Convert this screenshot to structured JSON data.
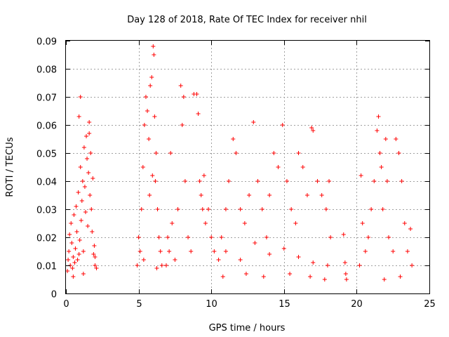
{
  "chart_data": {
    "type": "scatter",
    "title": "Day 128 of 2018, Rate Of TEC Index for receiver nhil",
    "xlabel": "GPS time / hours",
    "ylabel": "ROTI / TECUs",
    "xlim": [
      0,
      25
    ],
    "ylim": [
      0,
      0.09
    ],
    "xticks": [
      0,
      5,
      10,
      15,
      20,
      25
    ],
    "yticks": [
      0,
      0.01,
      0.02,
      0.03,
      0.04,
      0.05,
      0.06,
      0.07,
      0.08,
      0.09
    ],
    "xtick_labels": [
      "0",
      "5",
      "10",
      "15",
      "20",
      "25"
    ],
    "ytick_labels": [
      "0",
      "0.01",
      "0.02",
      "0.03",
      "0.04",
      "0.05",
      "0.06",
      "0.07",
      "0.08",
      "0.09"
    ],
    "grid": true,
    "marker": "+",
    "color": "#ff0000",
    "series": [
      {
        "name": "ROTI",
        "points": [
          [
            0.1,
            0.008
          ],
          [
            0.15,
            0.012
          ],
          [
            0.2,
            0.015
          ],
          [
            0.25,
            0.021
          ],
          [
            0.3,
            0.01
          ],
          [
            0.35,
            0.025
          ],
          [
            0.4,
            0.018
          ],
          [
            0.45,
            0.009
          ],
          [
            0.5,
            0.013
          ],
          [
            0.55,
            0.028
          ],
          [
            0.6,
            0.011
          ],
          [
            0.65,
            0.016
          ],
          [
            0.7,
            0.031
          ],
          [
            0.75,
            0.022
          ],
          [
            0.8,
            0.012
          ],
          [
            0.85,
            0.036
          ],
          [
            0.9,
            0.014
          ],
          [
            0.95,
            0.019
          ],
          [
            1.0,
            0.045
          ],
          [
            1.05,
            0.026
          ],
          [
            1.1,
            0.033
          ],
          [
            1.15,
            0.04
          ],
          [
            1.2,
            0.015
          ],
          [
            1.25,
            0.052
          ],
          [
            1.3,
            0.038
          ],
          [
            1.35,
            0.029
          ],
          [
            1.4,
            0.056
          ],
          [
            1.45,
            0.048
          ],
          [
            1.5,
            0.024
          ],
          [
            1.55,
            0.043
          ],
          [
            1.6,
            0.057
          ],
          [
            1.65,
            0.035
          ],
          [
            1.7,
            0.05
          ],
          [
            1.75,
            0.03
          ],
          [
            1.8,
            0.022
          ],
          [
            1.85,
            0.041
          ],
          [
            1.9,
            0.014
          ],
          [
            1.95,
            0.017
          ],
          [
            2.0,
            0.01
          ],
          [
            2.1,
            0.009
          ],
          [
            1.0,
            0.07
          ],
          [
            0.9,
            0.063
          ],
          [
            1.6,
            0.061
          ],
          [
            2.0,
            0.013
          ],
          [
            0.5,
            0.006
          ],
          [
            1.2,
            0.007
          ],
          [
            4.9,
            0.01
          ],
          [
            5.0,
            0.02
          ],
          [
            5.1,
            0.015
          ],
          [
            5.2,
            0.03
          ],
          [
            5.3,
            0.045
          ],
          [
            5.4,
            0.06
          ],
          [
            5.5,
            0.07
          ],
          [
            5.6,
            0.065
          ],
          [
            5.7,
            0.055
          ],
          [
            5.8,
            0.074
          ],
          [
            5.9,
            0.077
          ],
          [
            6.0,
            0.088
          ],
          [
            6.05,
            0.085
          ],
          [
            6.1,
            0.063
          ],
          [
            6.15,
            0.04
          ],
          [
            6.2,
            0.05
          ],
          [
            6.3,
            0.03
          ],
          [
            6.4,
            0.02
          ],
          [
            6.5,
            0.015
          ],
          [
            6.6,
            0.01
          ],
          [
            5.75,
            0.035
          ],
          [
            5.95,
            0.042
          ],
          [
            6.25,
            0.009
          ],
          [
            5.35,
            0.012
          ],
          [
            6.9,
            0.01
          ],
          [
            7.0,
            0.02
          ],
          [
            7.1,
            0.015
          ],
          [
            7.2,
            0.05
          ],
          [
            7.3,
            0.025
          ],
          [
            7.5,
            0.012
          ],
          [
            7.7,
            0.03
          ],
          [
            7.9,
            0.074
          ],
          [
            8.0,
            0.06
          ],
          [
            8.1,
            0.07
          ],
          [
            8.2,
            0.04
          ],
          [
            8.4,
            0.02
          ],
          [
            8.6,
            0.015
          ],
          [
            8.8,
            0.071
          ],
          [
            9.0,
            0.071
          ],
          [
            9.1,
            0.064
          ],
          [
            9.2,
            0.04
          ],
          [
            9.3,
            0.035
          ],
          [
            9.4,
            0.03
          ],
          [
            9.5,
            0.042
          ],
          [
            9.6,
            0.025
          ],
          [
            9.8,
            0.03
          ],
          [
            10.0,
            0.02
          ],
          [
            10.2,
            0.015
          ],
          [
            10.5,
            0.012
          ],
          [
            10.7,
            0.02
          ],
          [
            11.0,
            0.03
          ],
          [
            11.2,
            0.04
          ],
          [
            11.5,
            0.055
          ],
          [
            11.7,
            0.05
          ],
          [
            12.0,
            0.03
          ],
          [
            12.3,
            0.025
          ],
          [
            12.6,
            0.035
          ],
          [
            12.9,
            0.061
          ],
          [
            13.2,
            0.04
          ],
          [
            13.5,
            0.03
          ],
          [
            13.8,
            0.02
          ],
          [
            14.0,
            0.035
          ],
          [
            14.3,
            0.05
          ],
          [
            14.6,
            0.045
          ],
          [
            14.9,
            0.06
          ],
          [
            15.2,
            0.04
          ],
          [
            15.5,
            0.03
          ],
          [
            15.8,
            0.025
          ],
          [
            16.0,
            0.05
          ],
          [
            16.3,
            0.045
          ],
          [
            16.6,
            0.035
          ],
          [
            16.9,
            0.059
          ],
          [
            17.0,
            0.058
          ],
          [
            17.3,
            0.04
          ],
          [
            17.6,
            0.035
          ],
          [
            17.9,
            0.03
          ],
          [
            18.1,
            0.04
          ],
          [
            18.2,
            0.02
          ],
          [
            11.0,
            0.015
          ],
          [
            12.0,
            0.012
          ],
          [
            13.0,
            0.018
          ],
          [
            14.0,
            0.014
          ],
          [
            15.0,
            0.016
          ],
          [
            16.0,
            0.013
          ],
          [
            17.0,
            0.011
          ],
          [
            18.0,
            0.01
          ],
          [
            10.8,
            0.006
          ],
          [
            12.4,
            0.007
          ],
          [
            13.6,
            0.006
          ],
          [
            15.4,
            0.007
          ],
          [
            16.8,
            0.006
          ],
          [
            17.8,
            0.005
          ],
          [
            19.1,
            0.021
          ],
          [
            19.2,
            0.011
          ],
          [
            19.25,
            0.007
          ],
          [
            19.3,
            0.005
          ],
          [
            20.2,
            0.01
          ],
          [
            20.4,
            0.025
          ],
          [
            20.6,
            0.015
          ],
          [
            20.8,
            0.02
          ],
          [
            21.0,
            0.03
          ],
          [
            21.2,
            0.04
          ],
          [
            21.4,
            0.058
          ],
          [
            21.5,
            0.063
          ],
          [
            21.6,
            0.05
          ],
          [
            21.7,
            0.045
          ],
          [
            21.8,
            0.03
          ],
          [
            22.0,
            0.055
          ],
          [
            22.1,
            0.04
          ],
          [
            22.2,
            0.02
          ],
          [
            22.5,
            0.015
          ],
          [
            22.7,
            0.055
          ],
          [
            22.9,
            0.05
          ],
          [
            23.1,
            0.04
          ],
          [
            23.3,
            0.025
          ],
          [
            23.5,
            0.015
          ],
          [
            23.7,
            0.023
          ],
          [
            23.8,
            0.01
          ],
          [
            20.3,
            0.042
          ],
          [
            21.9,
            0.005
          ],
          [
            23.0,
            0.006
          ]
        ]
      }
    ]
  }
}
